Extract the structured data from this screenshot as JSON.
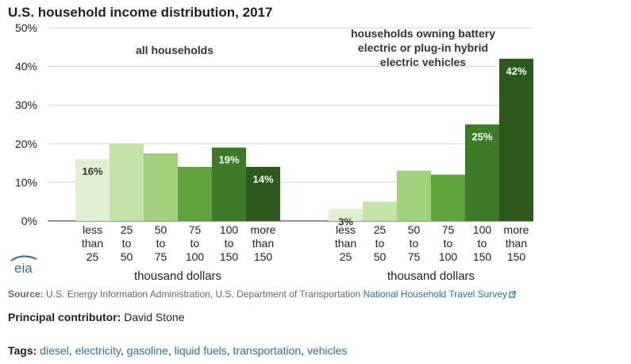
{
  "chart_data": {
    "type": "bar",
    "title": "U.S. household income distribution, 2017",
    "y_ticks": [
      "50%",
      "40%",
      "30%",
      "20%",
      "10%",
      "0%"
    ],
    "ylim": [
      0,
      50
    ],
    "grid": true,
    "xlabel": "thousand dollars",
    "categories": [
      [
        "less",
        "than",
        "25"
      ],
      [
        "25",
        "to",
        "50"
      ],
      [
        "50",
        "to",
        "75"
      ],
      [
        "75",
        "to",
        "100"
      ],
      [
        "100",
        "to",
        "150"
      ],
      [
        "more",
        "than",
        "150"
      ]
    ],
    "colors": [
      "#dff0d0",
      "#c4e3a8",
      "#9fd27a",
      "#5fa43c",
      "#3f7a28",
      "#2b5a1c"
    ],
    "panels": [
      {
        "name": "all households",
        "label": "all households",
        "values": [
          16,
          20,
          17.5,
          14,
          19,
          14
        ],
        "data_labels": [
          "16%",
          "",
          "",
          "",
          "19%",
          "14%"
        ]
      },
      {
        "name": "households owning battery electric or plug-in hybrid electric vehicles",
        "label_lines": [
          "households owning battery",
          "electric or plug-in hybrid",
          "electric vehicles"
        ],
        "values": [
          3,
          5,
          13,
          12,
          25,
          42
        ],
        "data_labels": [
          "3%",
          "",
          "",
          "",
          "25%",
          "42%"
        ]
      }
    ]
  },
  "logo": "eia",
  "source": {
    "label": "Source:",
    "text": "U.S. Energy Information Administration, U.S. Department of Transportation",
    "link_text": "National Household Travel Survey"
  },
  "contributor": {
    "label": "Principal contributor:",
    "name": "David Stone"
  },
  "tags": {
    "label": "Tags:",
    "items": [
      "diesel",
      "electricity",
      "gasoline",
      "liquid fuels",
      "transportation",
      "vehicles"
    ]
  }
}
